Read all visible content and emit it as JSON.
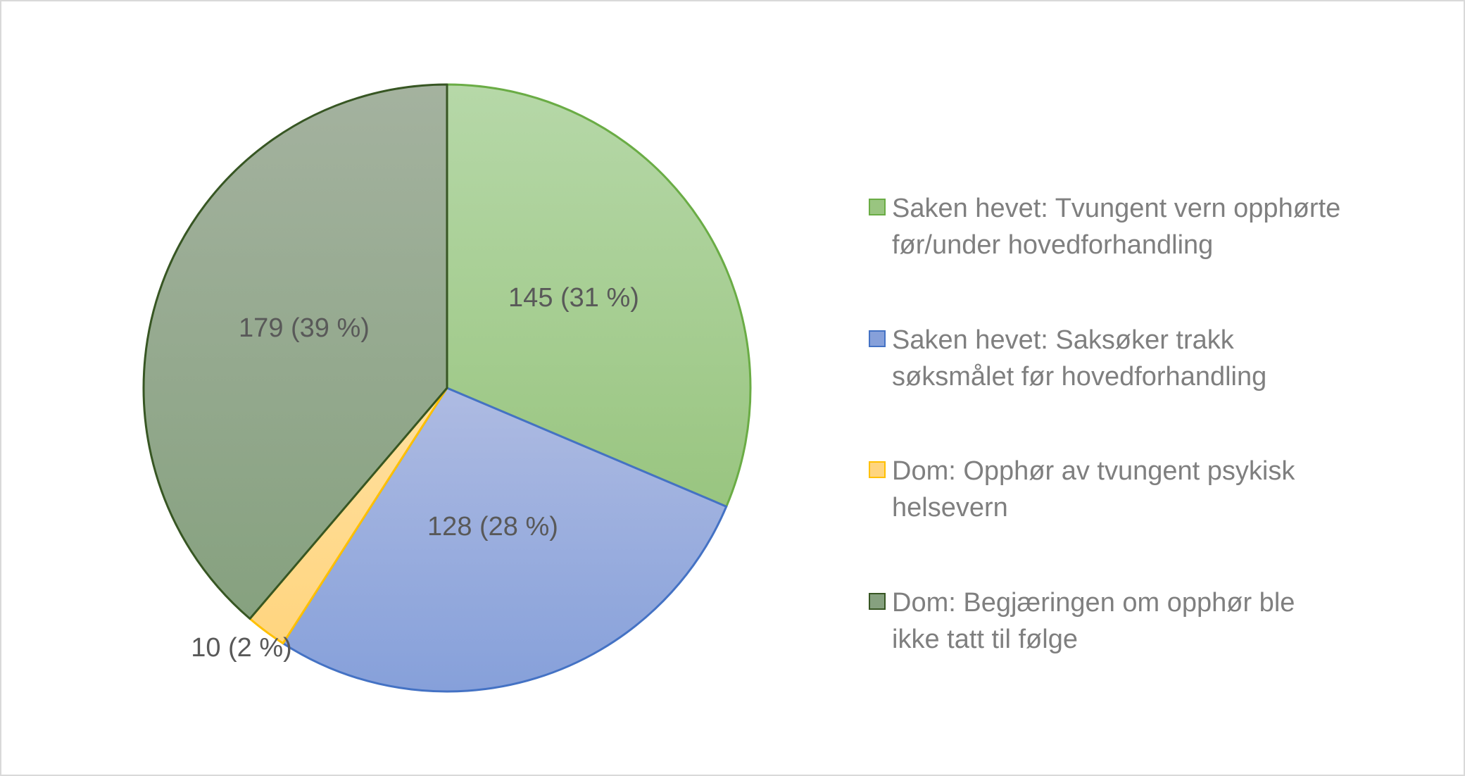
{
  "chart_data": {
    "type": "pie",
    "title": "",
    "slices": [
      {
        "label": "Saken hevet: Tvungent vern opphørte før/under hovedforhandling",
        "legend_lines": [
          "Saken hevet: Tvungent vern opphørte",
          "før/under hovedforhandling"
        ],
        "value": 145,
        "percent": 31,
        "data_label": "145 (31 %)",
        "fill_top": "#b6d8a8",
        "fill_bottom": "#99c580",
        "stroke": "#6aac45"
      },
      {
        "label": "Saken hevet: Saksøker trakk søksmålet før hovedforhandling",
        "legend_lines": [
          "Saken hevet: Saksøker trakk",
          "søksmålet før hovedforhandling"
        ],
        "value": 128,
        "percent": 28,
        "data_label": "128 (28 %)",
        "fill_top": "#aebbe2",
        "fill_bottom": "#86a0da",
        "stroke": "#4472c4"
      },
      {
        "label": "Dom: Opphør av tvungent psykisk helsevern",
        "legend_lines": [
          "Dom: Opphør av tvungent psykisk",
          "helsevern"
        ],
        "value": 10,
        "percent": 2,
        "data_label": "10 (2 %)",
        "fill_top": "#ffe0a0",
        "fill_bottom": "#ffd57f",
        "stroke": "#ffc000"
      },
      {
        "label": "Dom: Begjæringen om opphør ble ikke tatt til følge",
        "legend_lines": [
          "Dom: Begjæringen om opphør ble",
          "ikke tatt til følge"
        ],
        "value": 179,
        "percent": 39,
        "data_label": "179 (39 %)",
        "fill_top": "#a4b29f",
        "fill_bottom": "#86a17f",
        "stroke": "#375623"
      }
    ],
    "legend_position": "right"
  }
}
